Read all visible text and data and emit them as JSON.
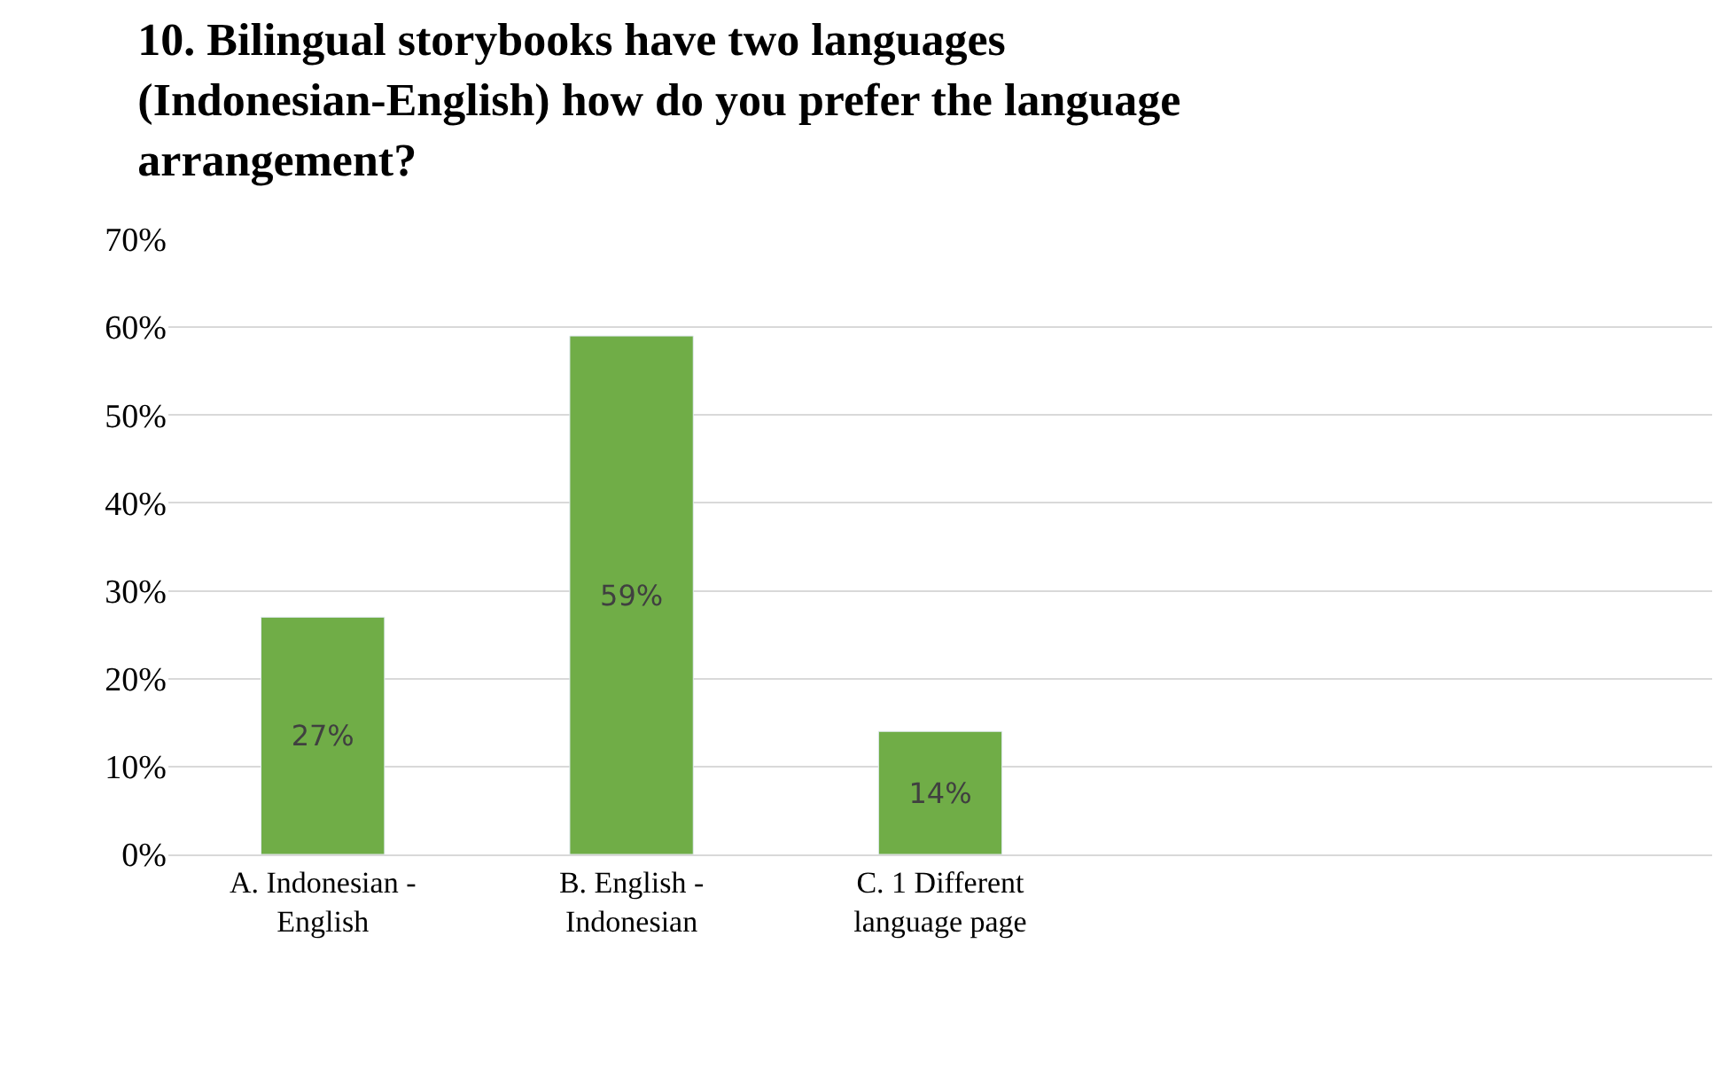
{
  "chart_data": {
    "type": "bar",
    "title": "10. Bilingual storybooks have two languages (Indonesian-English) how do you prefer the language arrangement?",
    "categories": [
      "A. Indonesian - English",
      "B. English - Indonesian",
      "C. 1 Different language page",
      null,
      null
    ],
    "values": [
      27,
      59,
      14,
      null,
      null
    ],
    "value_labels": [
      "27%",
      "59%",
      "14%",
      null,
      null
    ],
    "color": "#70ad47",
    "ylim": [
      0,
      70
    ],
    "yticks": [
      {
        "value": 0,
        "label": "0%"
      },
      {
        "value": 10,
        "label": "10%"
      },
      {
        "value": 20,
        "label": "20%"
      },
      {
        "value": 30,
        "label": "30%"
      },
      {
        "value": 40,
        "label": "40%"
      },
      {
        "value": 50,
        "label": "50%"
      },
      {
        "value": 60,
        "label": "60%"
      },
      {
        "value": 70,
        "label": "70%"
      }
    ],
    "grid": "y",
    "legend": false
  }
}
